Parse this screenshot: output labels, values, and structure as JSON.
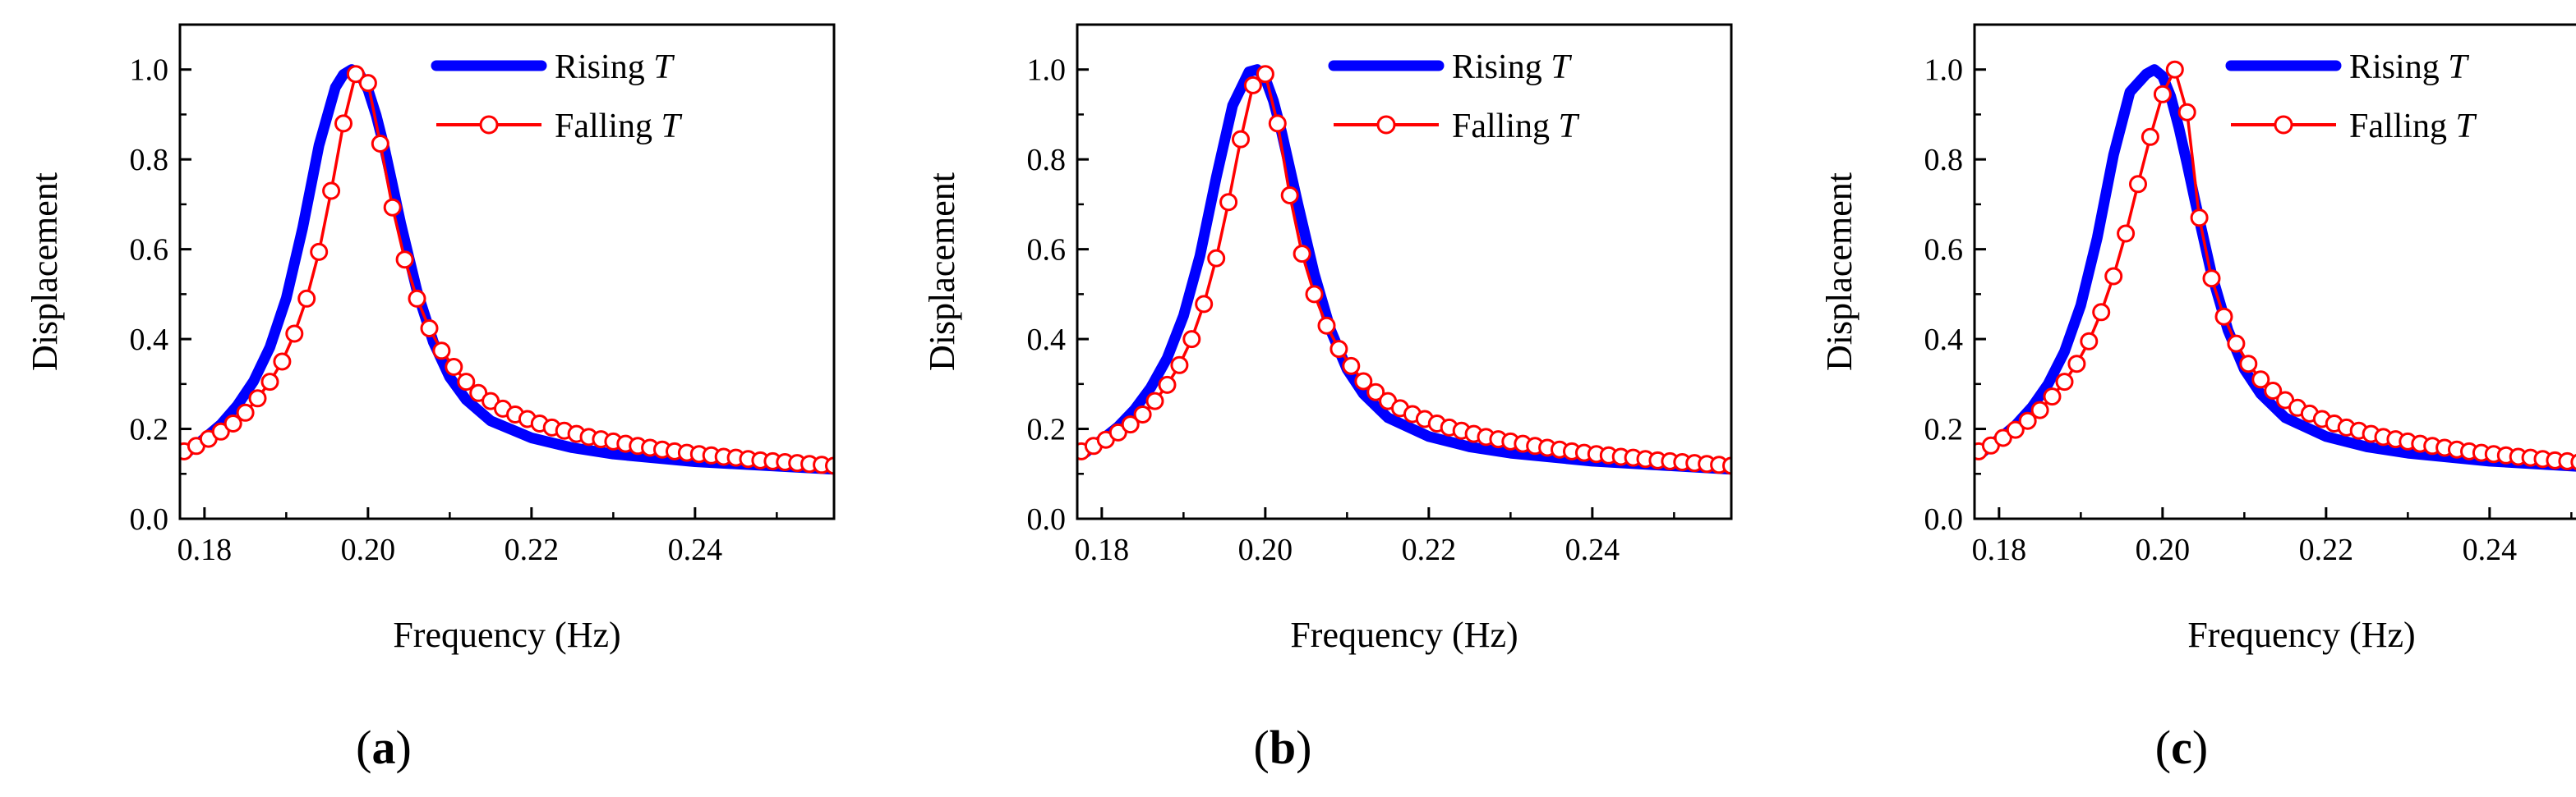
{
  "legend_swatch_colors": {
    "rising": "#0000ff",
    "falling": "#ff0000",
    "marker_fill": "#ffffff"
  },
  "chart_data": [
    {
      "type": "line",
      "panel_label": {
        "open": "(",
        "letter": "a",
        "close": ")"
      },
      "xlabel": "Frequency (Hz)",
      "ylabel": "Displacement",
      "xlim": [
        0.177,
        0.257
      ],
      "ylim": [
        0.0,
        1.1
      ],
      "xticks": [
        0.18,
        0.2,
        0.22,
        0.24
      ],
      "xtick_labels": [
        "0.18",
        "0.20",
        "0.22",
        "0.24"
      ],
      "yticks": [
        0.0,
        0.2,
        0.4,
        0.6,
        0.8,
        1.0
      ],
      "ytick_labels": [
        "0.0",
        "0.2",
        "0.4",
        "0.6",
        "0.8",
        "1.0"
      ],
      "legend": {
        "position": "top-right",
        "entries": [
          {
            "text": "Rising ",
            "italic": "T"
          },
          {
            "text": "Falling ",
            "italic": "T"
          }
        ]
      },
      "series": [
        {
          "color": "#0000ff",
          "style": "thick-line",
          "x": [
            0.178,
            0.18,
            0.182,
            0.184,
            0.186,
            0.188,
            0.19,
            0.192,
            0.194,
            0.196,
            0.197,
            0.198,
            0.199,
            0.2,
            0.201,
            0.202,
            0.203,
            0.204,
            0.206,
            0.208,
            0.21,
            0.212,
            0.215,
            0.22,
            0.225,
            0.23,
            0.24,
            0.257
          ],
          "y": [
            0.149,
            0.179,
            0.21,
            0.252,
            0.306,
            0.382,
            0.491,
            0.647,
            0.831,
            0.96,
            0.989,
            1.0,
            0.989,
            0.955,
            0.898,
            0.826,
            0.743,
            0.658,
            0.507,
            0.393,
            0.315,
            0.265,
            0.218,
            0.18,
            0.158,
            0.144,
            0.127,
            0.11
          ]
        },
        {
          "color": "#ff0000",
          "style": "line-with-open-circles",
          "x": [
            0.1775,
            0.179,
            0.1805,
            0.182,
            0.1835,
            0.185,
            0.1865,
            0.188,
            0.1895,
            0.191,
            0.1925,
            0.194,
            0.1955,
            0.197,
            0.1985,
            0.2,
            0.2015,
            0.203,
            0.2045,
            0.206,
            0.2075,
            0.209,
            0.2105,
            0.212,
            0.2135,
            0.215,
            0.2165,
            0.218,
            0.2195,
            0.221,
            0.2225,
            0.224,
            0.2255,
            0.227,
            0.2285,
            0.23,
            0.2315,
            0.233,
            0.2345,
            0.236,
            0.2375,
            0.239,
            0.2405,
            0.242,
            0.2435,
            0.245,
            0.2465,
            0.248,
            0.2495,
            0.251,
            0.2525,
            0.254,
            0.2555,
            0.257
          ],
          "y": [
            0.15,
            0.162,
            0.178,
            0.194,
            0.212,
            0.236,
            0.268,
            0.305,
            0.35,
            0.412,
            0.49,
            0.594,
            0.73,
            0.88,
            0.99,
            0.97,
            0.835,
            0.693,
            0.577,
            0.49,
            0.424,
            0.374,
            0.338,
            0.305,
            0.28,
            0.262,
            0.245,
            0.232,
            0.222,
            0.212,
            0.203,
            0.196,
            0.189,
            0.182,
            0.177,
            0.172,
            0.167,
            0.162,
            0.158,
            0.154,
            0.15,
            0.147,
            0.144,
            0.141,
            0.138,
            0.136,
            0.133,
            0.13,
            0.128,
            0.126,
            0.124,
            0.122,
            0.12,
            0.118
          ]
        }
      ]
    },
    {
      "type": "line",
      "panel_label": {
        "open": "(",
        "letter": "b",
        "close": ")"
      },
      "xlabel": "Frequency (Hz)",
      "ylabel": "Displacement",
      "xlim": [
        0.177,
        0.257
      ],
      "ylim": [
        0.0,
        1.1
      ],
      "xticks": [
        0.18,
        0.2,
        0.22,
        0.24
      ],
      "xtick_labels": [
        "0.18",
        "0.20",
        "0.22",
        "0.24"
      ],
      "yticks": [
        0.0,
        0.2,
        0.4,
        0.6,
        0.8,
        1.0
      ],
      "ytick_labels": [
        "0.0",
        "0.2",
        "0.4",
        "0.6",
        "0.8",
        "1.0"
      ],
      "legend": {
        "position": "top-right",
        "entries": [
          {
            "text": "Rising ",
            "italic": "T"
          },
          {
            "text": "Falling ",
            "italic": "T"
          }
        ]
      },
      "series": [
        {
          "color": "#0000ff",
          "style": "thick-line",
          "x": [
            0.178,
            0.18,
            0.182,
            0.184,
            0.186,
            0.188,
            0.19,
            0.192,
            0.194,
            0.196,
            0.198,
            0.199,
            0.2,
            0.201,
            0.202,
            0.203,
            0.204,
            0.206,
            0.208,
            0.21,
            0.212,
            0.215,
            0.22,
            0.225,
            0.23,
            0.24,
            0.257
          ],
          "y": [
            0.147,
            0.176,
            0.205,
            0.243,
            0.292,
            0.358,
            0.452,
            0.585,
            0.76,
            0.92,
            0.995,
            1.0,
            0.98,
            0.93,
            0.86,
            0.78,
            0.7,
            0.545,
            0.42,
            0.333,
            0.278,
            0.225,
            0.183,
            0.16,
            0.146,
            0.128,
            0.11
          ]
        },
        {
          "color": "#ff0000",
          "style": "line-with-open-circles",
          "x": [
            0.1775,
            0.179,
            0.1805,
            0.182,
            0.1835,
            0.185,
            0.1865,
            0.188,
            0.1895,
            0.191,
            0.1925,
            0.194,
            0.1955,
            0.197,
            0.1985,
            0.2,
            0.2015,
            0.203,
            0.2045,
            0.206,
            0.2075,
            0.209,
            0.2105,
            0.212,
            0.2135,
            0.215,
            0.2165,
            0.218,
            0.2195,
            0.221,
            0.2225,
            0.224,
            0.2255,
            0.227,
            0.2285,
            0.23,
            0.2315,
            0.233,
            0.2345,
            0.236,
            0.2375,
            0.239,
            0.2405,
            0.242,
            0.2435,
            0.245,
            0.2465,
            0.248,
            0.2495,
            0.251,
            0.2525,
            0.254,
            0.2555,
            0.257
          ],
          "y": [
            0.15,
            0.162,
            0.176,
            0.192,
            0.21,
            0.232,
            0.262,
            0.298,
            0.342,
            0.4,
            0.478,
            0.58,
            0.705,
            0.845,
            0.965,
            0.99,
            0.88,
            0.72,
            0.59,
            0.5,
            0.43,
            0.378,
            0.34,
            0.306,
            0.282,
            0.262,
            0.246,
            0.233,
            0.222,
            0.212,
            0.203,
            0.196,
            0.189,
            0.182,
            0.177,
            0.172,
            0.167,
            0.162,
            0.158,
            0.154,
            0.15,
            0.147,
            0.144,
            0.141,
            0.138,
            0.136,
            0.133,
            0.13,
            0.128,
            0.126,
            0.124,
            0.122,
            0.12,
            0.118
          ]
        }
      ]
    },
    {
      "type": "line",
      "panel_label": {
        "open": "(",
        "letter": "c",
        "close": ")"
      },
      "xlabel": "Frequency (Hz)",
      "ylabel": "Displacement",
      "xlim": [
        0.177,
        0.257
      ],
      "ylim": [
        0.0,
        1.1
      ],
      "xticks": [
        0.18,
        0.2,
        0.22,
        0.24
      ],
      "xtick_labels": [
        "0.18",
        "0.20",
        "0.22",
        "0.24"
      ],
      "yticks": [
        0.0,
        0.2,
        0.4,
        0.6,
        0.8,
        1.0
      ],
      "ytick_labels": [
        "0.0",
        "0.2",
        "0.4",
        "0.6",
        "0.8",
        "1.0"
      ],
      "legend": {
        "position": "top-right",
        "entries": [
          {
            "text": "Rising ",
            "italic": "T"
          },
          {
            "text": "Falling ",
            "italic": "T"
          }
        ]
      },
      "series": [
        {
          "color": "#0000ff",
          "style": "thick-line",
          "x": [
            0.178,
            0.18,
            0.182,
            0.184,
            0.186,
            0.188,
            0.19,
            0.192,
            0.194,
            0.196,
            0.198,
            0.199,
            0.2,
            0.201,
            0.202,
            0.203,
            0.204,
            0.206,
            0.208,
            0.21,
            0.212,
            0.215,
            0.22,
            0.225,
            0.23,
            0.24,
            0.257
          ],
          "y": [
            0.148,
            0.178,
            0.208,
            0.248,
            0.3,
            0.372,
            0.475,
            0.625,
            0.81,
            0.95,
            0.99,
            1.0,
            0.985,
            0.94,
            0.87,
            0.79,
            0.705,
            0.545,
            0.42,
            0.333,
            0.278,
            0.225,
            0.183,
            0.16,
            0.146,
            0.128,
            0.11
          ]
        },
        {
          "color": "#ff0000",
          "style": "line-with-open-circles",
          "x": [
            0.1775,
            0.179,
            0.1805,
            0.182,
            0.1835,
            0.185,
            0.1865,
            0.188,
            0.1895,
            0.191,
            0.1925,
            0.194,
            0.1955,
            0.197,
            0.1985,
            0.2,
            0.2015,
            0.203,
            0.2045,
            0.206,
            0.2075,
            0.209,
            0.2105,
            0.212,
            0.2135,
            0.215,
            0.2165,
            0.218,
            0.2195,
            0.221,
            0.2225,
            0.224,
            0.2255,
            0.227,
            0.2285,
            0.23,
            0.2315,
            0.233,
            0.2345,
            0.236,
            0.2375,
            0.239,
            0.2405,
            0.242,
            0.2435,
            0.245,
            0.2465,
            0.248,
            0.2495,
            0.251,
            0.2525,
            0.254,
            0.2555,
            0.257
          ],
          "y": [
            0.15,
            0.163,
            0.18,
            0.198,
            0.218,
            0.242,
            0.272,
            0.305,
            0.345,
            0.395,
            0.46,
            0.54,
            0.635,
            0.745,
            0.85,
            0.945,
            1.0,
            0.905,
            0.67,
            0.535,
            0.45,
            0.39,
            0.345,
            0.31,
            0.285,
            0.264,
            0.247,
            0.234,
            0.222,
            0.212,
            0.203,
            0.196,
            0.189,
            0.182,
            0.177,
            0.172,
            0.167,
            0.162,
            0.158,
            0.154,
            0.15,
            0.147,
            0.144,
            0.141,
            0.138,
            0.136,
            0.133,
            0.13,
            0.128,
            0.126,
            0.124,
            0.122,
            0.12,
            0.118
          ]
        }
      ]
    }
  ]
}
